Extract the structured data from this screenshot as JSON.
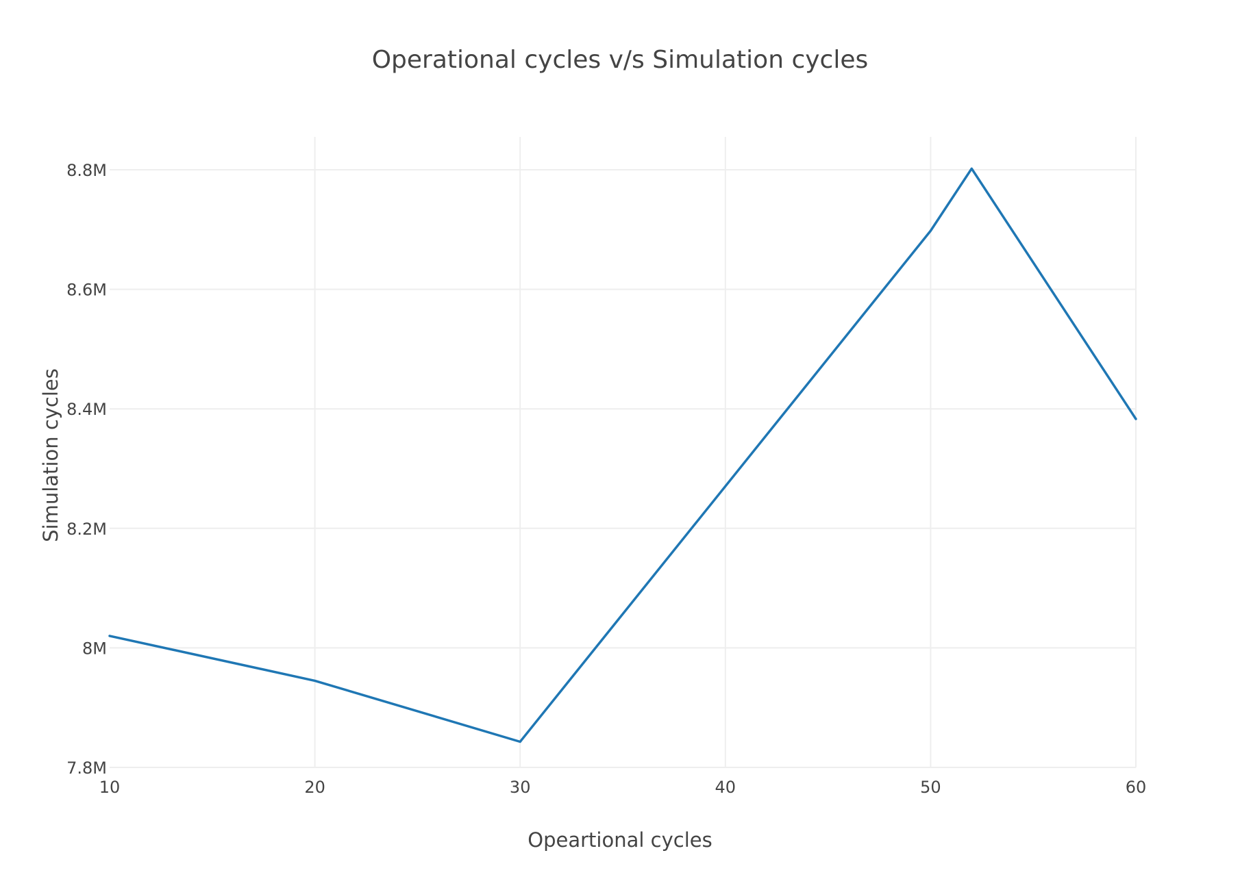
{
  "chart_data": {
    "type": "line",
    "title": "Operational cycles v/s Simulation cycles",
    "xlabel": "Opeartional cycles",
    "ylabel": "Simulation cycles",
    "xlim": [
      10,
      60
    ],
    "ylim": [
      7.8,
      8.855
    ],
    "y_unit_suffix": "M",
    "x_ticks": [
      10,
      20,
      30,
      40,
      50,
      60
    ],
    "x_tick_labels": [
      "10",
      "20",
      "30",
      "40",
      "50",
      "60"
    ],
    "y_ticks": [
      7.8,
      8.0,
      8.2,
      8.4,
      8.6,
      8.8
    ],
    "y_tick_labels": [
      "7.8M",
      "8M",
      "8.2M",
      "8.4M",
      "8.6M",
      "8.8M"
    ],
    "grid": true,
    "legend": "none",
    "series": [
      {
        "x": [
          10,
          20,
          30,
          50,
          52,
          60
        ],
        "y": [
          8.02,
          7.945,
          7.843,
          8.698,
          8.802,
          8.383
        ],
        "color": "#1f77b4"
      }
    ]
  }
}
